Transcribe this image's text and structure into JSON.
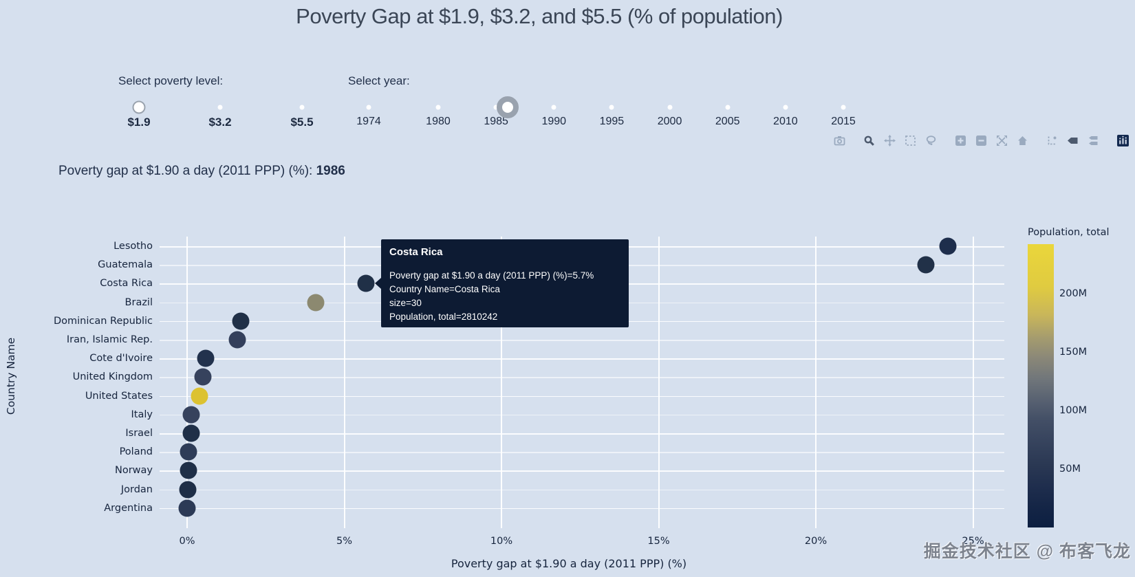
{
  "title": "Poverty Gap at $1.9, $3.2, and $5.5 (% of population)",
  "controls": {
    "poverty_slider": {
      "label": "Select poverty level:",
      "options": [
        "$1.9",
        "$3.2",
        "$5.5"
      ],
      "selected": "$1.9"
    },
    "year_slider": {
      "label": "Select year:",
      "tick_labels": [
        "1974",
        "1980",
        "1985",
        "1990",
        "1995",
        "2000",
        "2005",
        "2010",
        "2015"
      ],
      "tick_years": [
        1974,
        1980,
        1985,
        1990,
        1995,
        2000,
        2005,
        2010,
        2015
      ],
      "selected_year": 1986
    }
  },
  "modebar": {
    "icons": [
      {
        "name": "camera-icon",
        "active": false,
        "group": 0
      },
      {
        "name": "zoom-icon",
        "active": true,
        "group": 1
      },
      {
        "name": "pan-icon",
        "active": false,
        "group": 1
      },
      {
        "name": "box-select-icon",
        "active": false,
        "group": 1
      },
      {
        "name": "lasso-select-icon",
        "active": false,
        "group": 1
      },
      {
        "name": "zoom-in-icon",
        "active": false,
        "group": 2
      },
      {
        "name": "zoom-out-icon",
        "active": false,
        "group": 2
      },
      {
        "name": "autoscale-icon",
        "active": false,
        "group": 2
      },
      {
        "name": "reset-axes-home-icon",
        "active": false,
        "group": 2
      },
      {
        "name": "toggle-spikelines-icon",
        "active": false,
        "group": 3
      },
      {
        "name": "hover-closest-icon",
        "active": true,
        "group": 3
      },
      {
        "name": "hover-compare-icon",
        "active": false,
        "group": 3
      },
      {
        "name": "plotly-logo-icon",
        "active": false,
        "group": 4
      }
    ]
  },
  "current_value": {
    "prefix": "Poverty gap at $1.90 a day (2011 PPP) (%): ",
    "value": "1986"
  },
  "chart_data": {
    "type": "scatter",
    "title": "Poverty Gap at $1.9, $3.2, and $5.5 (% of population)",
    "xlabel": "Poverty gap at $1.90 a day (2011 PPP) (%)",
    "ylabel": "Country Name",
    "grid": true,
    "xlim": [
      -0.9,
      26.0
    ],
    "xticks": [
      0,
      5,
      10,
      15,
      20,
      25
    ],
    "xtick_labels": [
      "0%",
      "5%",
      "10%",
      "15%",
      "20%",
      "25%"
    ],
    "marker_size": 30,
    "categories": [
      "Lesotho",
      "Guatemala",
      "Costa Rica",
      "Brazil",
      "Dominican Republic",
      "Iran, Islamic Rep.",
      "Cote d'Ivoire",
      "United Kingdom",
      "United States",
      "Italy",
      "Israel",
      "Poland",
      "Norway",
      "Jordan",
      "Argentina"
    ],
    "values": [
      24.2,
      23.5,
      5.7,
      4.1,
      1.7,
      1.6,
      0.6,
      0.5,
      0.4,
      0.13,
      0.13,
      0.05,
      0.05,
      0.02,
      0.01
    ],
    "colors": [
      "#1e2e4c",
      "#213148",
      "#203047",
      "#8c8970",
      "#203047",
      "#333f5b",
      "#22324d",
      "#36425d",
      "#dcc231",
      "#36425d",
      "#1f2f48",
      "#2e3c58",
      "#1f2f48",
      "#1e2e47",
      "#2c3a56"
    ],
    "colorbar": {
      "title": "Population, total",
      "tick_labels": [
        "200M",
        "150M",
        "100M",
        "50M"
      ],
      "tick_values": [
        200,
        150,
        100,
        50
      ],
      "max_value": 242,
      "top_color": "#ead63b",
      "bottom_color": "#0c1f41"
    }
  },
  "tooltip": {
    "title": "Costa Rica",
    "lines": [
      "Poverty gap at $1.90 a day (2011 PPP) (%)=5.7%",
      "Country Name=Costa Rica",
      "size=30",
      "Population, total=2810242"
    ]
  },
  "watermark": "掘金技术社区 @ 布客飞龙",
  "colors": {
    "background": "#d6e0ee",
    "tooltip_background": "#0d1b33",
    "modebar_default": "#9aaabf",
    "modebar_active": "#4d5a6e",
    "highlight_yellow": "#dcc231"
  }
}
